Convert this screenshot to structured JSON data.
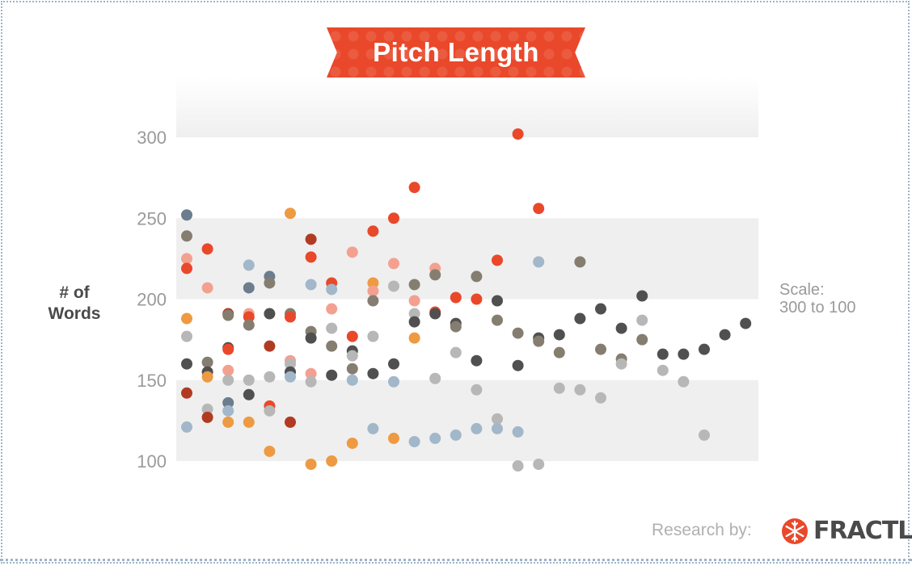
{
  "title": "Pitch Length",
  "ylabel": "# of Words",
  "scale_note": {
    "line1": "Scale:",
    "line2": "300 to 100"
  },
  "credit": {
    "prefix": "Research by:",
    "brand": "FRACTL"
  },
  "colors": {
    "red": "#e9482a",
    "salmon": "#f4a091",
    "orange": "#ee9a42",
    "darkred": "#b13b22",
    "taupe": "#857e70",
    "charcoal": "#505050",
    "lightgray": "#b7b7b7",
    "lightblue": "#a2b7c9",
    "slate": "#6c7d8d",
    "band": "#efefef"
  },
  "chart_data": {
    "type": "scatter",
    "title": "Pitch Length",
    "xlabel": "",
    "ylabel": "# of Words",
    "ylim": [
      100,
      300
    ],
    "y_ticks": [
      100,
      150,
      200,
      250,
      300
    ],
    "grid": false,
    "bands": [
      [
        100,
        150
      ],
      [
        200,
        250
      ]
    ],
    "columns": 28,
    "points": [
      {
        "x": 1,
        "y": 252,
        "c": "slate"
      },
      {
        "x": 1,
        "y": 239,
        "c": "taupe"
      },
      {
        "x": 1,
        "y": 225,
        "c": "salmon"
      },
      {
        "x": 1,
        "y": 219,
        "c": "red"
      },
      {
        "x": 1,
        "y": 188,
        "c": "orange"
      },
      {
        "x": 1,
        "y": 177,
        "c": "lightgray"
      },
      {
        "x": 1,
        "y": 160,
        "c": "charcoal"
      },
      {
        "x": 1,
        "y": 142,
        "c": "darkred"
      },
      {
        "x": 1,
        "y": 121,
        "c": "lightblue"
      },
      {
        "x": 2,
        "y": 231,
        "c": "red"
      },
      {
        "x": 2,
        "y": 207,
        "c": "salmon"
      },
      {
        "x": 2,
        "y": 161,
        "c": "taupe"
      },
      {
        "x": 2,
        "y": 155,
        "c": "charcoal"
      },
      {
        "x": 2,
        "y": 152,
        "c": "orange"
      },
      {
        "x": 2,
        "y": 132,
        "c": "lightgray"
      },
      {
        "x": 2,
        "y": 127,
        "c": "darkred"
      },
      {
        "x": 3,
        "y": 191,
        "c": "darkred"
      },
      {
        "x": 3,
        "y": 190,
        "c": "taupe"
      },
      {
        "x": 3,
        "y": 170,
        "c": "charcoal"
      },
      {
        "x": 3,
        "y": 169,
        "c": "red"
      },
      {
        "x": 3,
        "y": 156,
        "c": "salmon"
      },
      {
        "x": 3,
        "y": 150,
        "c": "lightgray"
      },
      {
        "x": 3,
        "y": 136,
        "c": "slate"
      },
      {
        "x": 3,
        "y": 131,
        "c": "lightblue"
      },
      {
        "x": 3,
        "y": 124,
        "c": "orange"
      },
      {
        "x": 4,
        "y": 221,
        "c": "lightblue"
      },
      {
        "x": 4,
        "y": 207,
        "c": "slate"
      },
      {
        "x": 4,
        "y": 191,
        "c": "salmon"
      },
      {
        "x": 4,
        "y": 189,
        "c": "red"
      },
      {
        "x": 4,
        "y": 184,
        "c": "taupe"
      },
      {
        "x": 4,
        "y": 150,
        "c": "lightgray"
      },
      {
        "x": 4,
        "y": 141,
        "c": "charcoal"
      },
      {
        "x": 4,
        "y": 124,
        "c": "orange"
      },
      {
        "x": 5,
        "y": 214,
        "c": "slate"
      },
      {
        "x": 5,
        "y": 210,
        "c": "taupe"
      },
      {
        "x": 5,
        "y": 191,
        "c": "charcoal"
      },
      {
        "x": 5,
        "y": 171,
        "c": "darkred"
      },
      {
        "x": 5,
        "y": 152,
        "c": "lightgray"
      },
      {
        "x": 5,
        "y": 134,
        "c": "red"
      },
      {
        "x": 5,
        "y": 131,
        "c": "lightgray"
      },
      {
        "x": 5,
        "y": 106,
        "c": "orange"
      },
      {
        "x": 6,
        "y": 253,
        "c": "orange"
      },
      {
        "x": 6,
        "y": 191,
        "c": "taupe"
      },
      {
        "x": 6,
        "y": 189,
        "c": "red"
      },
      {
        "x": 6,
        "y": 162,
        "c": "salmon"
      },
      {
        "x": 6,
        "y": 160,
        "c": "lightgray"
      },
      {
        "x": 6,
        "y": 155,
        "c": "charcoal"
      },
      {
        "x": 6,
        "y": 152,
        "c": "lightblue"
      },
      {
        "x": 6,
        "y": 124,
        "c": "darkred"
      },
      {
        "x": 7,
        "y": 237,
        "c": "darkred"
      },
      {
        "x": 7,
        "y": 226,
        "c": "red"
      },
      {
        "x": 7,
        "y": 209,
        "c": "lightblue"
      },
      {
        "x": 7,
        "y": 180,
        "c": "taupe"
      },
      {
        "x": 7,
        "y": 176,
        "c": "charcoal"
      },
      {
        "x": 7,
        "y": 154,
        "c": "salmon"
      },
      {
        "x": 7,
        "y": 149,
        "c": "lightgray"
      },
      {
        "x": 7,
        "y": 98,
        "c": "orange"
      },
      {
        "x": 8,
        "y": 210,
        "c": "red"
      },
      {
        "x": 8,
        "y": 206,
        "c": "lightblue"
      },
      {
        "x": 8,
        "y": 194,
        "c": "salmon"
      },
      {
        "x": 8,
        "y": 182,
        "c": "lightgray"
      },
      {
        "x": 8,
        "y": 171,
        "c": "taupe"
      },
      {
        "x": 8,
        "y": 153,
        "c": "charcoal"
      },
      {
        "x": 8,
        "y": 100,
        "c": "orange"
      },
      {
        "x": 9,
        "y": 229,
        "c": "salmon"
      },
      {
        "x": 9,
        "y": 177,
        "c": "red"
      },
      {
        "x": 9,
        "y": 168,
        "c": "charcoal"
      },
      {
        "x": 9,
        "y": 165,
        "c": "lightgray"
      },
      {
        "x": 9,
        "y": 157,
        "c": "taupe"
      },
      {
        "x": 9,
        "y": 150,
        "c": "lightblue"
      },
      {
        "x": 9,
        "y": 111,
        "c": "orange"
      },
      {
        "x": 10,
        "y": 242,
        "c": "red"
      },
      {
        "x": 10,
        "y": 210,
        "c": "orange"
      },
      {
        "x": 10,
        "y": 205,
        "c": "salmon"
      },
      {
        "x": 10,
        "y": 199,
        "c": "taupe"
      },
      {
        "x": 10,
        "y": 177,
        "c": "lightgray"
      },
      {
        "x": 10,
        "y": 154,
        "c": "charcoal"
      },
      {
        "x": 10,
        "y": 120,
        "c": "lightblue"
      },
      {
        "x": 11,
        "y": 250,
        "c": "red"
      },
      {
        "x": 11,
        "y": 222,
        "c": "salmon"
      },
      {
        "x": 11,
        "y": 208,
        "c": "lightgray"
      },
      {
        "x": 11,
        "y": 160,
        "c": "charcoal"
      },
      {
        "x": 11,
        "y": 149,
        "c": "lightblue"
      },
      {
        "x": 11,
        "y": 114,
        "c": "orange"
      },
      {
        "x": 12,
        "y": 269,
        "c": "red"
      },
      {
        "x": 12,
        "y": 209,
        "c": "taupe"
      },
      {
        "x": 12,
        "y": 199,
        "c": "salmon"
      },
      {
        "x": 12,
        "y": 191,
        "c": "lightgray"
      },
      {
        "x": 12,
        "y": 186,
        "c": "charcoal"
      },
      {
        "x": 12,
        "y": 176,
        "c": "orange"
      },
      {
        "x": 12,
        "y": 112,
        "c": "lightblue"
      },
      {
        "x": 13,
        "y": 219,
        "c": "salmon"
      },
      {
        "x": 13,
        "y": 215,
        "c": "taupe"
      },
      {
        "x": 13,
        "y": 192,
        "c": "red"
      },
      {
        "x": 13,
        "y": 191,
        "c": "charcoal"
      },
      {
        "x": 13,
        "y": 151,
        "c": "lightgray"
      },
      {
        "x": 13,
        "y": 114,
        "c": "lightblue"
      },
      {
        "x": 14,
        "y": 201,
        "c": "red"
      },
      {
        "x": 14,
        "y": 185,
        "c": "charcoal"
      },
      {
        "x": 14,
        "y": 183,
        "c": "taupe"
      },
      {
        "x": 14,
        "y": 167,
        "c": "lightgray"
      },
      {
        "x": 14,
        "y": 116,
        "c": "lightblue"
      },
      {
        "x": 15,
        "y": 214,
        "c": "taupe"
      },
      {
        "x": 15,
        "y": 200,
        "c": "red"
      },
      {
        "x": 15,
        "y": 162,
        "c": "charcoal"
      },
      {
        "x": 15,
        "y": 144,
        "c": "lightgray"
      },
      {
        "x": 15,
        "y": 120,
        "c": "lightblue"
      },
      {
        "x": 16,
        "y": 224,
        "c": "red"
      },
      {
        "x": 16,
        "y": 199,
        "c": "charcoal"
      },
      {
        "x": 16,
        "y": 187,
        "c": "taupe"
      },
      {
        "x": 16,
        "y": 126,
        "c": "lightgray"
      },
      {
        "x": 16,
        "y": 120,
        "c": "lightblue"
      },
      {
        "x": 17,
        "y": 302,
        "c": "red"
      },
      {
        "x": 17,
        "y": 179,
        "c": "taupe"
      },
      {
        "x": 17,
        "y": 159,
        "c": "charcoal"
      },
      {
        "x": 17,
        "y": 118,
        "c": "lightblue"
      },
      {
        "x": 17,
        "y": 97,
        "c": "lightgray"
      },
      {
        "x": 18,
        "y": 256,
        "c": "red"
      },
      {
        "x": 18,
        "y": 223,
        "c": "lightblue"
      },
      {
        "x": 18,
        "y": 176,
        "c": "charcoal"
      },
      {
        "x": 18,
        "y": 174,
        "c": "taupe"
      },
      {
        "x": 18,
        "y": 98,
        "c": "lightgray"
      },
      {
        "x": 19,
        "y": 178,
        "c": "charcoal"
      },
      {
        "x": 19,
        "y": 167,
        "c": "taupe"
      },
      {
        "x": 19,
        "y": 145,
        "c": "lightgray"
      },
      {
        "x": 20,
        "y": 223,
        "c": "taupe"
      },
      {
        "x": 20,
        "y": 188,
        "c": "charcoal"
      },
      {
        "x": 20,
        "y": 144,
        "c": "lightgray"
      },
      {
        "x": 21,
        "y": 194,
        "c": "charcoal"
      },
      {
        "x": 21,
        "y": 169,
        "c": "taupe"
      },
      {
        "x": 21,
        "y": 139,
        "c": "lightgray"
      },
      {
        "x": 22,
        "y": 182,
        "c": "charcoal"
      },
      {
        "x": 22,
        "y": 163,
        "c": "taupe"
      },
      {
        "x": 22,
        "y": 160,
        "c": "lightgray"
      },
      {
        "x": 23,
        "y": 202,
        "c": "charcoal"
      },
      {
        "x": 23,
        "y": 187,
        "c": "lightgray"
      },
      {
        "x": 23,
        "y": 175,
        "c": "taupe"
      },
      {
        "x": 24,
        "y": 166,
        "c": "charcoal"
      },
      {
        "x": 24,
        "y": 156,
        "c": "lightgray"
      },
      {
        "x": 25,
        "y": 166,
        "c": "charcoal"
      },
      {
        "x": 25,
        "y": 149,
        "c": "lightgray"
      },
      {
        "x": 26,
        "y": 169,
        "c": "charcoal"
      },
      {
        "x": 26,
        "y": 116,
        "c": "lightgray"
      },
      {
        "x": 27,
        "y": 178,
        "c": "charcoal"
      },
      {
        "x": 28,
        "y": 185,
        "c": "charcoal"
      }
    ]
  }
}
